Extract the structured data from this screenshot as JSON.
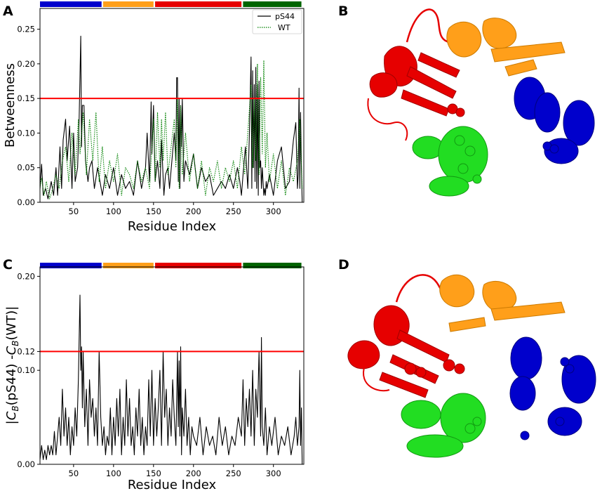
{
  "panels": {
    "A": "A",
    "B": "B",
    "C": "C",
    "D": "D"
  },
  "colors": {
    "domain_blue": "#0000cc",
    "domain_orange": "#ff9f1a",
    "domain_red": "#e60000",
    "domain_green": "#006400",
    "threshold": "#ff0000",
    "pS44": "#000000",
    "WT": "#008000"
  },
  "structures": {
    "B": {
      "highlight_regions": [
        "green",
        "blue",
        "red"
      ]
    },
    "D": {
      "highlight_regions": [
        "red",
        "blue",
        "green"
      ]
    }
  },
  "chart_data": [
    {
      "type": "line",
      "panel": "A",
      "xlabel": "Residue Index",
      "ylabel": "Betweenness",
      "xlim": [
        8,
        338
      ],
      "ylim": [
        0,
        0.28
      ],
      "xticks": [
        50,
        100,
        150,
        200,
        250,
        300
      ],
      "yticks": [
        0.0,
        0.05,
        0.1,
        0.15,
        0.2,
        0.25
      ],
      "ytick_labels": [
        "0.00",
        "0.05",
        "0.10",
        "0.15",
        "0.20",
        "0.25"
      ],
      "threshold": 0.15,
      "legend": {
        "position": "top-right",
        "entries": [
          "pS44",
          "WT"
        ]
      },
      "domain_bar": [
        {
          "start": 8,
          "end": 85,
          "color": "#0000cc"
        },
        {
          "start": 87,
          "end": 150,
          "color": "#ff9f1a"
        },
        {
          "start": 152,
          "end": 260,
          "color": "#e60000"
        },
        {
          "start": 262,
          "end": 335,
          "color": "#006400"
        }
      ],
      "series": [
        {
          "name": "pS44",
          "style": "solid",
          "color": "#000000",
          "x": [
            8,
            10,
            12,
            15,
            18,
            22,
            25,
            28,
            30,
            33,
            35,
            37,
            40,
            42,
            45,
            48,
            50,
            52,
            55,
            57,
            59,
            60,
            61,
            63,
            65,
            68,
            70,
            73,
            76,
            80,
            83,
            86,
            90,
            95,
            100,
            105,
            110,
            115,
            120,
            125,
            130,
            135,
            140,
            142,
            145,
            147,
            148,
            150,
            152,
            155,
            158,
            160,
            163,
            165,
            168,
            170,
            173,
            176,
            178,
            179,
            180,
            181,
            182,
            183,
            184,
            185,
            186,
            188,
            190,
            195,
            200,
            205,
            210,
            215,
            220,
            225,
            230,
            235,
            240,
            245,
            250,
            255,
            258,
            260,
            262,
            265,
            268,
            270,
            272,
            273,
            274,
            275,
            276,
            277,
            278,
            279,
            280,
            281,
            282,
            283,
            284,
            285,
            286,
            287,
            288,
            289,
            290,
            291,
            292,
            295,
            300,
            305,
            310,
            315,
            320,
            325,
            328,
            330,
            331,
            332,
            333,
            334,
            335,
            336
          ],
          "values": [
            0.02,
            0.055,
            0.01,
            0.02,
            0.005,
            0.03,
            0.01,
            0.05,
            0.01,
            0.08,
            0.02,
            0.09,
            0.12,
            0.06,
            0.11,
            0.02,
            0.1,
            0.03,
            0.05,
            0.12,
            0.24,
            0.08,
            0.14,
            0.14,
            0.06,
            0.03,
            0.05,
            0.06,
            0.02,
            0.05,
            0.03,
            0.01,
            0.04,
            0.02,
            0.05,
            0.01,
            0.04,
            0.02,
            0.03,
            0.01,
            0.06,
            0.02,
            0.05,
            0.1,
            0.03,
            0.145,
            0.07,
            0.14,
            0.03,
            0.06,
            0.02,
            0.09,
            0.01,
            0.04,
            0.05,
            0.02,
            0.06,
            0.1,
            0.06,
            0.18,
            0.18,
            0.03,
            0.15,
            0.02,
            0.14,
            0.08,
            0.15,
            0.03,
            0.06,
            0.04,
            0.07,
            0.02,
            0.05,
            0.03,
            0.04,
            0.01,
            0.02,
            0.03,
            0.02,
            0.04,
            0.02,
            0.05,
            0.03,
            0.01,
            0.04,
            0.08,
            0.02,
            0.1,
            0.21,
            0.02,
            0.19,
            0.05,
            0.17,
            0.03,
            0.195,
            0.02,
            0.17,
            0.01,
            0.175,
            0.05,
            0.06,
            0.02,
            0.05,
            0.03,
            0.01,
            0.02,
            0.01,
            0.03,
            0.02,
            0.04,
            0.01,
            0.06,
            0.08,
            0.02,
            0.03,
            0.09,
            0.115,
            0.02,
            0.04,
            0.165,
            0.02,
            0.13,
            0.05,
            0.0
          ]
        },
        {
          "name": "WT",
          "style": "dotted",
          "color": "#008000",
          "x": [
            8,
            10,
            13,
            16,
            20,
            24,
            28,
            32,
            36,
            40,
            44,
            48,
            52,
            56,
            58,
            62,
            66,
            70,
            74,
            78,
            82,
            86,
            90,
            95,
            100,
            105,
            110,
            115,
            120,
            125,
            130,
            135,
            140,
            145,
            150,
            152,
            155,
            158,
            160,
            162,
            165,
            168,
            172,
            176,
            178,
            180,
            182,
            184,
            186,
            190,
            195,
            200,
            205,
            210,
            215,
            220,
            225,
            230,
            235,
            240,
            245,
            250,
            255,
            260,
            264,
            268,
            272,
            274,
            276,
            278,
            280,
            282,
            284,
            286,
            288,
            290,
            292,
            295,
            300,
            305,
            310,
            315,
            320,
            325,
            330,
            333,
            336
          ],
          "values": [
            0.02,
            0.035,
            0.01,
            0.03,
            0.005,
            0.02,
            0.04,
            0.02,
            0.06,
            0.08,
            0.03,
            0.1,
            0.04,
            0.12,
            0.07,
            0.13,
            0.04,
            0.12,
            0.06,
            0.13,
            0.03,
            0.08,
            0.02,
            0.06,
            0.03,
            0.07,
            0.01,
            0.05,
            0.04,
            0.02,
            0.06,
            0.03,
            0.05,
            0.02,
            0.12,
            0.03,
            0.13,
            0.05,
            0.12,
            0.06,
            0.13,
            0.04,
            0.08,
            0.12,
            0.05,
            0.15,
            0.02,
            0.14,
            0.04,
            0.1,
            0.03,
            0.07,
            0.02,
            0.06,
            0.01,
            0.05,
            0.03,
            0.06,
            0.02,
            0.05,
            0.03,
            0.06,
            0.02,
            0.08,
            0.04,
            0.1,
            0.17,
            0.05,
            0.15,
            0.06,
            0.2,
            0.04,
            0.18,
            0.07,
            0.205,
            0.05,
            0.1,
            0.03,
            0.07,
            0.02,
            0.06,
            0.01,
            0.05,
            0.03,
            0.06,
            0.12,
            0.02
          ]
        }
      ]
    },
    {
      "type": "line",
      "panel": "C",
      "xlabel": "Residue Index",
      "ylabel": "|C_B(pS44) -C_B(WT)|",
      "xlim": [
        8,
        338
      ],
      "ylim": [
        0,
        0.21
      ],
      "xticks": [
        50,
        100,
        150,
        200,
        250,
        300
      ],
      "yticks": [
        0.0,
        0.1,
        0.12,
        0.2
      ],
      "ytick_labels": [
        "0.00",
        "0.10",
        "0.12",
        "0.20"
      ],
      "threshold": 0.12,
      "domain_bar": [
        {
          "start": 8,
          "end": 85,
          "color": "#0000cc"
        },
        {
          "start": 87,
          "end": 150,
          "color": "#ff9f1a"
        },
        {
          "start": 152,
          "end": 260,
          "color": "#e60000"
        },
        {
          "start": 262,
          "end": 335,
          "color": "#006400"
        }
      ],
      "series": [
        {
          "name": "",
          "style": "solid",
          "color": "#000000",
          "x": [
            8,
            10,
            12,
            14,
            16,
            18,
            20,
            22,
            24,
            26,
            28,
            30,
            32,
            34,
            36,
            38,
            40,
            42,
            44,
            46,
            48,
            50,
            52,
            54,
            56,
            58,
            59,
            60,
            61,
            62,
            64,
            66,
            68,
            70,
            72,
            74,
            76,
            78,
            80,
            82,
            84,
            86,
            88,
            90,
            92,
            94,
            96,
            98,
            100,
            102,
            104,
            106,
            108,
            110,
            112,
            114,
            116,
            118,
            120,
            122,
            124,
            126,
            128,
            130,
            132,
            134,
            136,
            138,
            140,
            142,
            144,
            146,
            148,
            150,
            152,
            154,
            156,
            158,
            160,
            162,
            164,
            166,
            168,
            170,
            172,
            174,
            176,
            178,
            180,
            181,
            182,
            183,
            184,
            185,
            186,
            188,
            190,
            192,
            194,
            196,
            198,
            200,
            204,
            208,
            212,
            216,
            220,
            224,
            228,
            232,
            236,
            240,
            244,
            248,
            252,
            256,
            260,
            262,
            264,
            266,
            268,
            270,
            272,
            274,
            276,
            278,
            280,
            282,
            284,
            285,
            286,
            288,
            290,
            292,
            295,
            298,
            302,
            306,
            310,
            314,
            318,
            322,
            326,
            328,
            330,
            332,
            333,
            334,
            335,
            336
          ],
          "values": [
            0.005,
            0.02,
            0.005,
            0.015,
            0.005,
            0.02,
            0.01,
            0.02,
            0.01,
            0.035,
            0.01,
            0.03,
            0.05,
            0.02,
            0.08,
            0.03,
            0.06,
            0.02,
            0.05,
            0.01,
            0.04,
            0.02,
            0.06,
            0.03,
            0.09,
            0.18,
            0.1,
            0.125,
            0.06,
            0.12,
            0.04,
            0.08,
            0.02,
            0.09,
            0.05,
            0.07,
            0.03,
            0.06,
            0.02,
            0.12,
            0.05,
            0.02,
            0.04,
            0.01,
            0.03,
            0.02,
            0.06,
            0.01,
            0.05,
            0.02,
            0.07,
            0.03,
            0.08,
            0.01,
            0.05,
            0.02,
            0.09,
            0.03,
            0.07,
            0.02,
            0.04,
            0.01,
            0.06,
            0.03,
            0.08,
            0.02,
            0.05,
            0.01,
            0.04,
            0.02,
            0.09,
            0.03,
            0.1,
            0.02,
            0.07,
            0.03,
            0.06,
            0.1,
            0.02,
            0.12,
            0.05,
            0.08,
            0.02,
            0.06,
            0.03,
            0.09,
            0.05,
            0.02,
            0.12,
            0.04,
            0.11,
            0.03,
            0.125,
            0.01,
            0.06,
            0.03,
            0.08,
            0.02,
            0.05,
            0.01,
            0.04,
            0.03,
            0.02,
            0.05,
            0.01,
            0.04,
            0.02,
            0.03,
            0.01,
            0.05,
            0.02,
            0.04,
            0.01,
            0.03,
            0.02,
            0.05,
            0.03,
            0.09,
            0.02,
            0.07,
            0.04,
            0.08,
            0.03,
            0.1,
            0.02,
            0.08,
            0.05,
            0.12,
            0.03,
            0.135,
            0.04,
            0.02,
            0.06,
            0.01,
            0.04,
            0.02,
            0.05,
            0.01,
            0.03,
            0.02,
            0.04,
            0.01,
            0.03,
            0.05,
            0.02,
            0.04,
            0.1,
            0.02,
            0.06,
            0.0
          ]
        }
      ]
    }
  ]
}
